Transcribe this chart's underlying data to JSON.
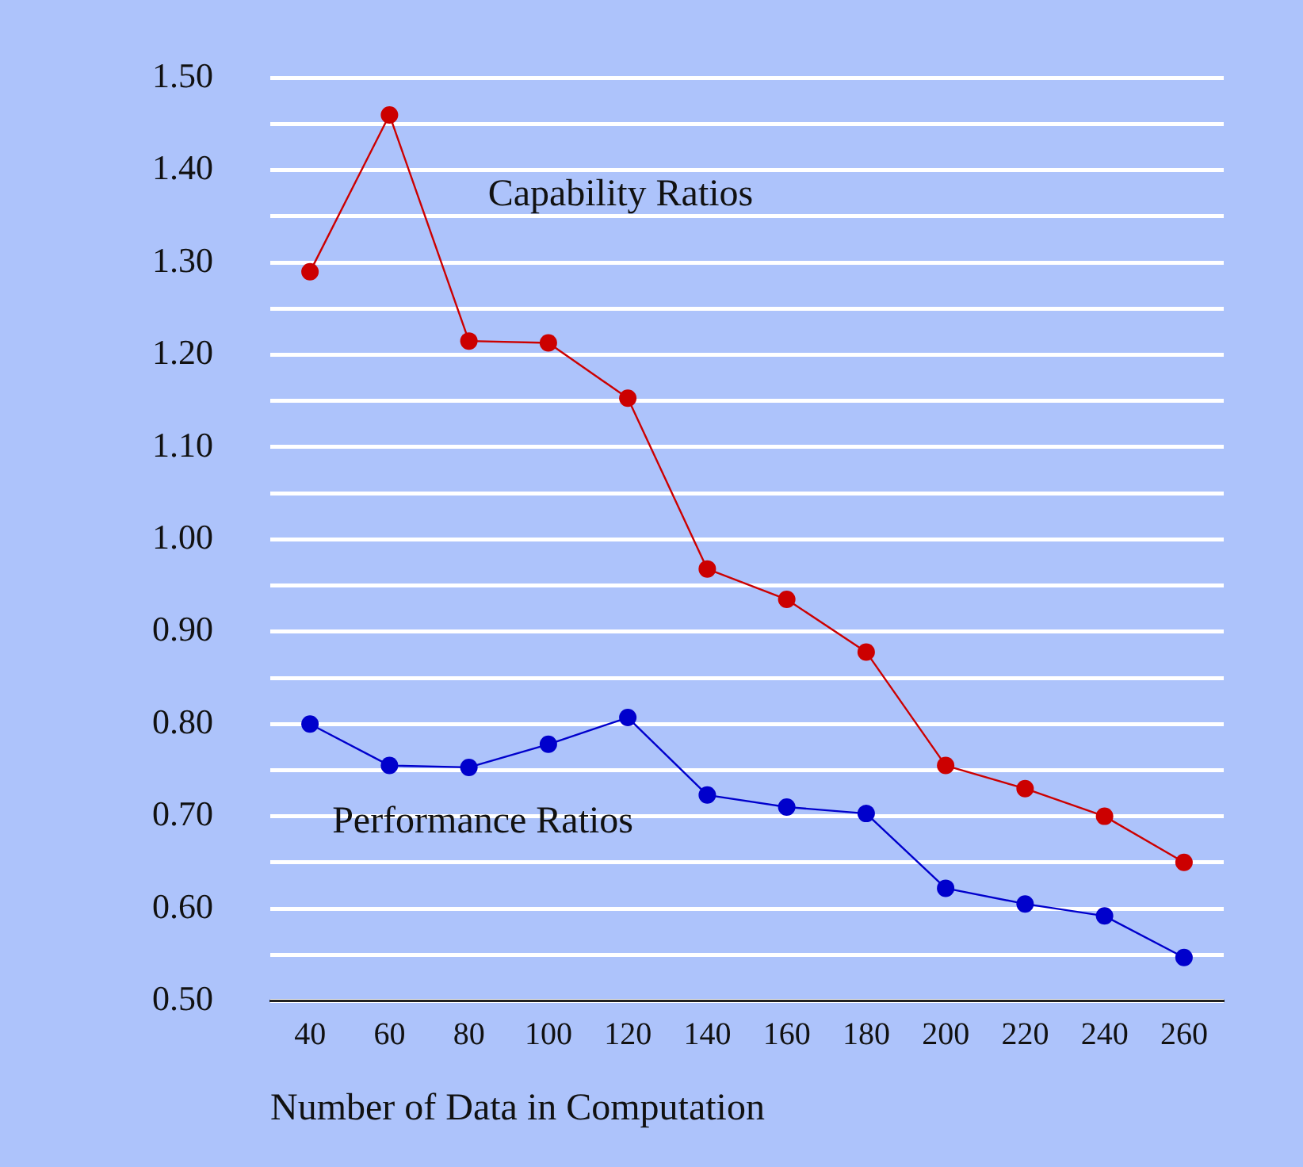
{
  "chart_data": {
    "type": "line",
    "xlabel": "Number of Data in Computation",
    "categories": [
      "40",
      "60",
      "80",
      "100",
      "120",
      "140",
      "160",
      "180",
      "200",
      "220",
      "240",
      "260"
    ],
    "series": [
      {
        "name": "Capability Ratios",
        "color": "#cc0000",
        "values": [
          1.29,
          1.46,
          1.215,
          1.213,
          1.153,
          0.968,
          0.935,
          0.878,
          0.755,
          0.73,
          0.7,
          0.65
        ]
      },
      {
        "name": "Performance Ratios",
        "color": "#0000cc",
        "values": [
          0.8,
          0.755,
          0.753,
          0.778,
          0.807,
          0.723,
          0.71,
          0.703,
          0.622,
          0.605,
          0.592,
          0.547
        ]
      }
    ],
    "ylim": [
      0.5,
      1.5
    ],
    "yticks": [
      {
        "value": 0.5,
        "label": "0.50"
      },
      {
        "value": 0.55,
        "label": null
      },
      {
        "value": 0.6,
        "label": "0.60"
      },
      {
        "value": 0.65,
        "label": null
      },
      {
        "value": 0.7,
        "label": "0.70"
      },
      {
        "value": 0.75,
        "label": null
      },
      {
        "value": 0.8,
        "label": "0.80"
      },
      {
        "value": 0.85,
        "label": null
      },
      {
        "value": 0.9,
        "label": "0.90"
      },
      {
        "value": 0.95,
        "label": null
      },
      {
        "value": 1.0,
        "label": "1.00"
      },
      {
        "value": 1.05,
        "label": null
      },
      {
        "value": 1.1,
        "label": "1.10"
      },
      {
        "value": 1.15,
        "label": null
      },
      {
        "value": 1.2,
        "label": "1.20"
      },
      {
        "value": 1.25,
        "label": null
      },
      {
        "value": 1.3,
        "label": "1.30"
      },
      {
        "value": 1.35,
        "label": null
      },
      {
        "value": 1.4,
        "label": "1.40"
      },
      {
        "value": 1.45,
        "label": null
      },
      {
        "value": 1.5,
        "label": "1.50"
      }
    ],
    "grid": "y",
    "legend": false,
    "marker": "circle",
    "line_style": "solid"
  }
}
